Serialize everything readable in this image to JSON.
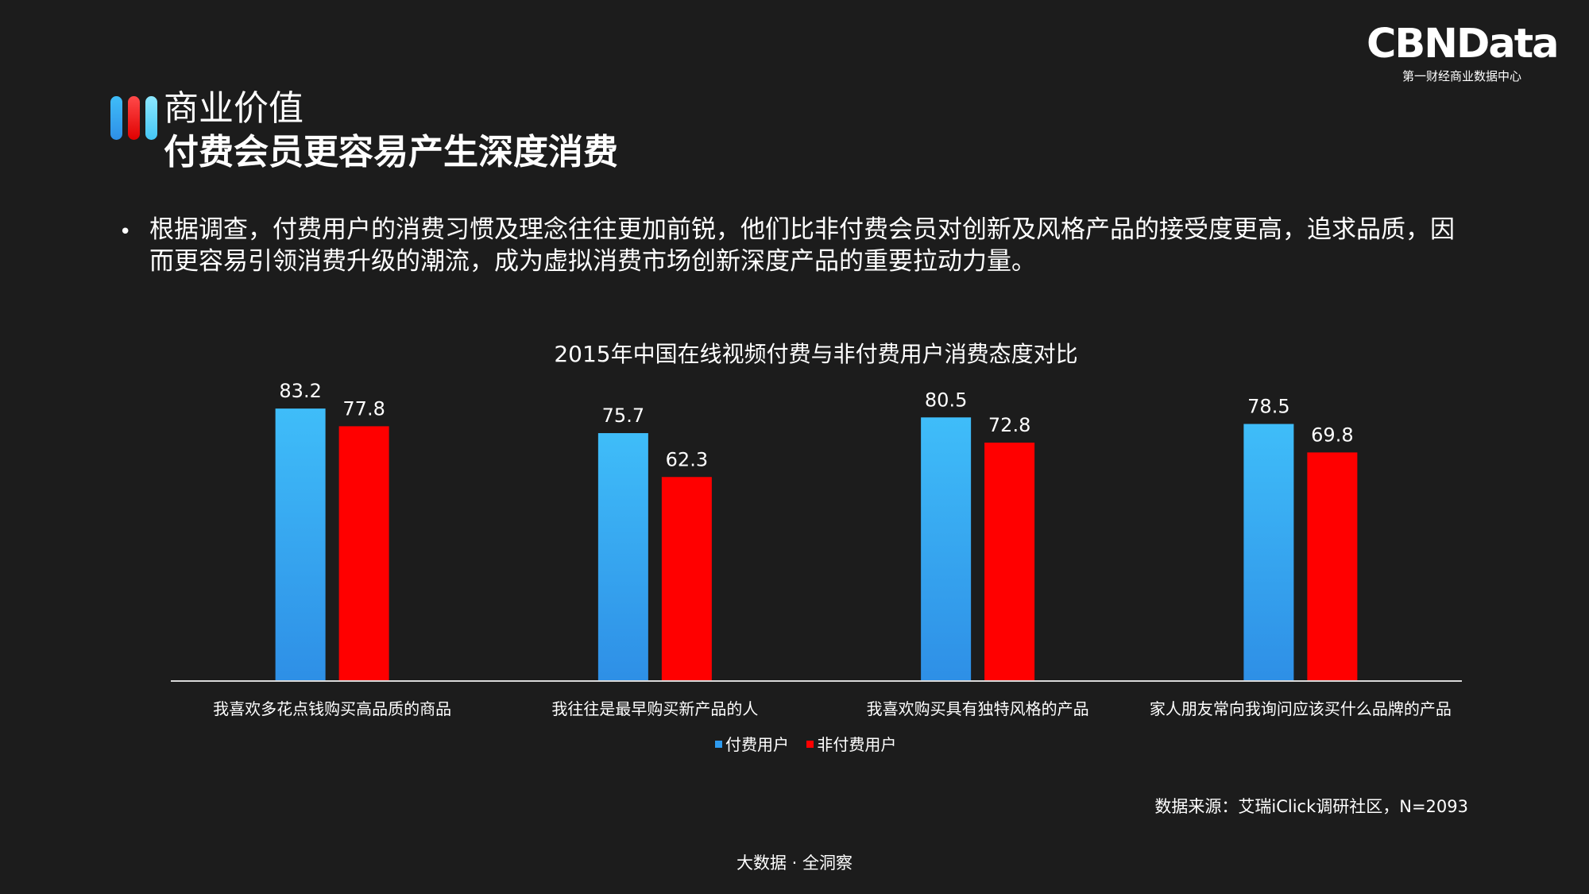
{
  "logo": {
    "text": "CBNData",
    "subtitle": "第一财经商业数据中心"
  },
  "section": {
    "title": "商业价值",
    "headline": "付费会员更容易产生深度消费"
  },
  "bullet": {
    "text": "根据调查，付费用户的消费习惯及理念往往更加前锐，他们比非付费会员对创新及风格产品的接受度更高，追求品质，因而更容易引领消费升级的潮流，成为虚拟消费市场创新深度产品的重要拉动力量。"
  },
  "chart_data": {
    "type": "bar",
    "title": "2015年中国在线视频付费与非付费用户消费态度对比",
    "categories": [
      "我喜欢多花点钱购买高品质的商品",
      "我往往是最早购买新产品的人",
      "我喜欢购买具有独特风格的产品",
      "家人朋友常向我询问应该买什么品牌的产品"
    ],
    "series": [
      {
        "name": "付费用户",
        "values": [
          83.2,
          75.7,
          80.5,
          78.5
        ],
        "color": "#2e8fe6",
        "color_top": "#3fbdf9"
      },
      {
        "name": "非付费用户",
        "values": [
          77.8,
          62.3,
          72.8,
          69.8
        ],
        "color": "#ff0000",
        "color_top": "#ff0000"
      }
    ],
    "ylim": [
      0,
      100
    ],
    "grid": false,
    "data_labels": true,
    "legend_position": "bottom"
  },
  "source": "数据来源：艾瑞iClick调研社区，N=2093",
  "footer": "大数据 · 全洞察"
}
